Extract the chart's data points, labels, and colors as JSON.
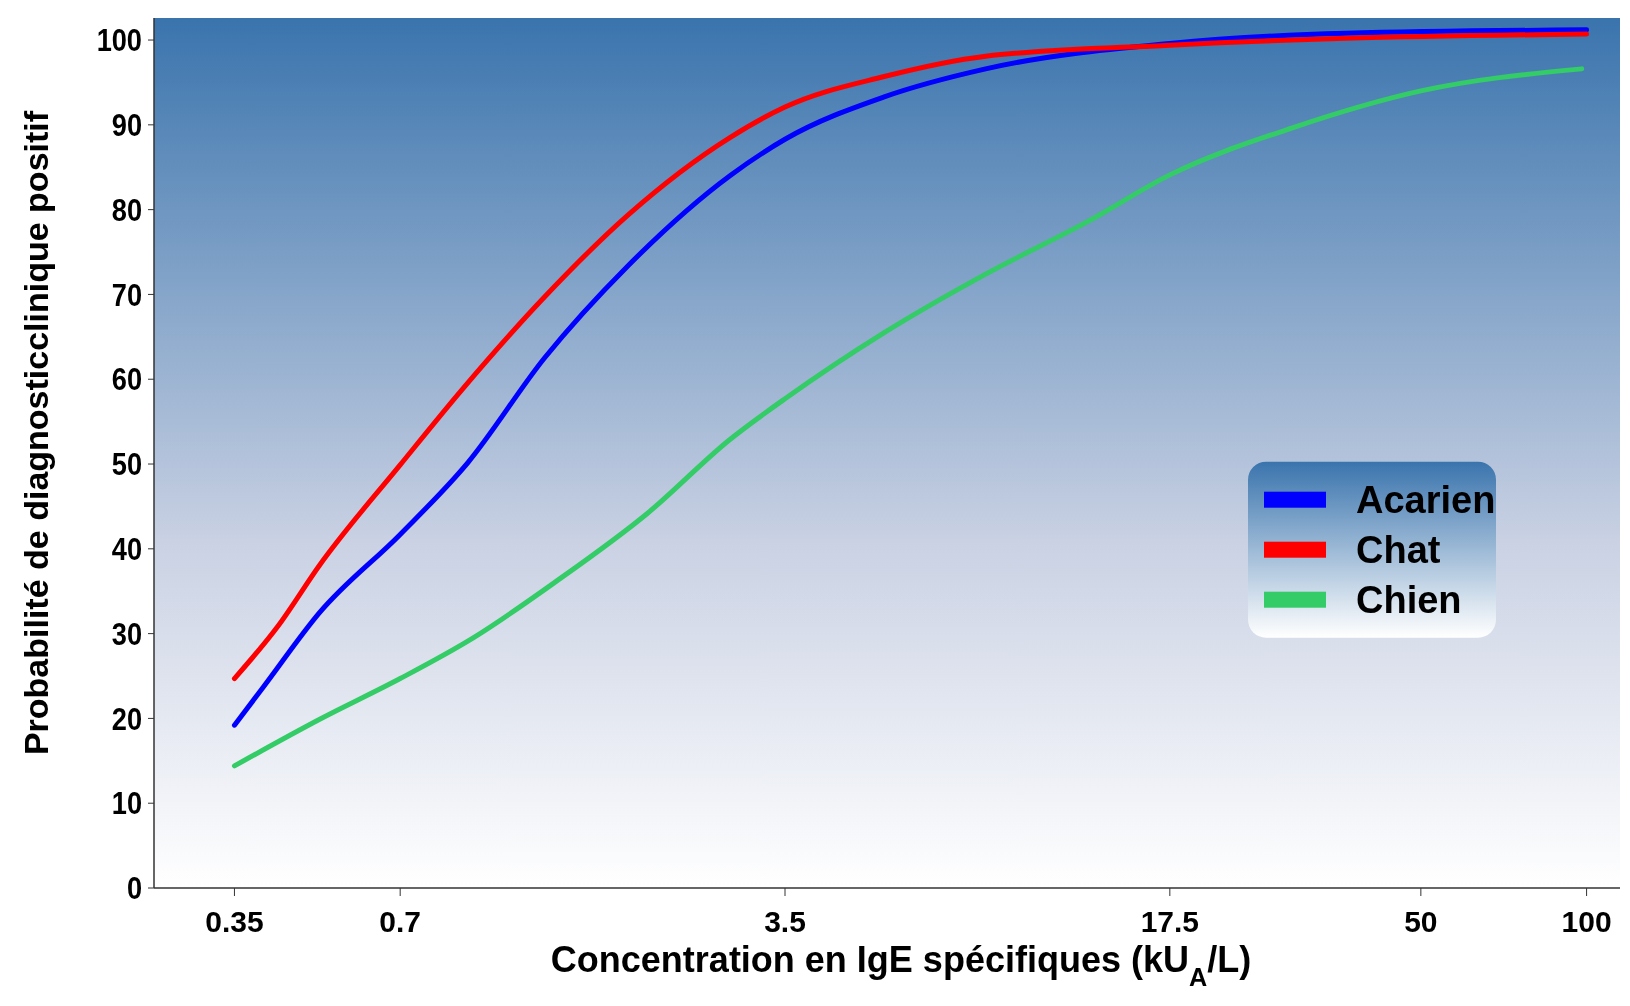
{
  "chart_data": {
    "type": "line",
    "xlabel": "Concentration en IgE spécifiques (kU$_{A}$/L)",
    "ylabel": "Probabilité de diagnosticclinique positif",
    "log": "x",
    "xlim": [
      0.25,
      115
    ],
    "xticks": [
      0.35,
      0.7,
      3.5,
      17.5,
      50,
      100
    ],
    "ylim": [
      0,
      102.6
    ],
    "yticks": [
      0,
      10,
      20,
      30,
      40,
      50,
      60,
      70,
      80,
      90,
      100
    ],
    "grid": false,
    "legend": "right",
    "series": [
      {
        "name": "Acarien",
        "color": "#0000ff",
        "x": [
          0.35,
          0.395,
          0.5,
          0.7,
          0.93,
          1.28,
          1.81,
          2.78,
          3.5,
          5.3,
          8.1,
          17.5,
          36.5,
          100
        ],
        "values": [
          19.2,
          23.7,
          32.5,
          41.7,
          50.2,
          62.5,
          73.3,
          84,
          88.3,
          93.3,
          96.6,
          99.6,
          100.8,
          101.2
        ]
      },
      {
        "name": "Chat",
        "color": "#ff0000",
        "x": [
          0.35,
          0.42,
          0.5,
          0.7,
          0.91,
          1.28,
          1.81,
          2.78,
          3.5,
          5.3,
          8.1,
          17.5,
          36.5,
          100
        ],
        "values": [
          24.7,
          30.9,
          38.1,
          49.9,
          58.9,
          69.7,
          79.3,
          88.5,
          92.1,
          95.7,
          98.1,
          99.4,
          100.2,
          100.7
        ]
      },
      {
        "name": "Chien",
        "color": "#33cc66",
        "x": [
          0.35,
          0.5,
          0.7,
          0.95,
          1.34,
          1.97,
          2.78,
          3.5,
          5.3,
          8.1,
          12.5,
          17.5,
          29.4,
          50,
          98
        ],
        "values": [
          14.4,
          19.9,
          24.7,
          29.5,
          36.1,
          44.2,
          52.9,
          57.7,
          65.5,
          72.4,
          78.7,
          84.1,
          89.7,
          94,
          96.6
        ]
      }
    ]
  }
}
